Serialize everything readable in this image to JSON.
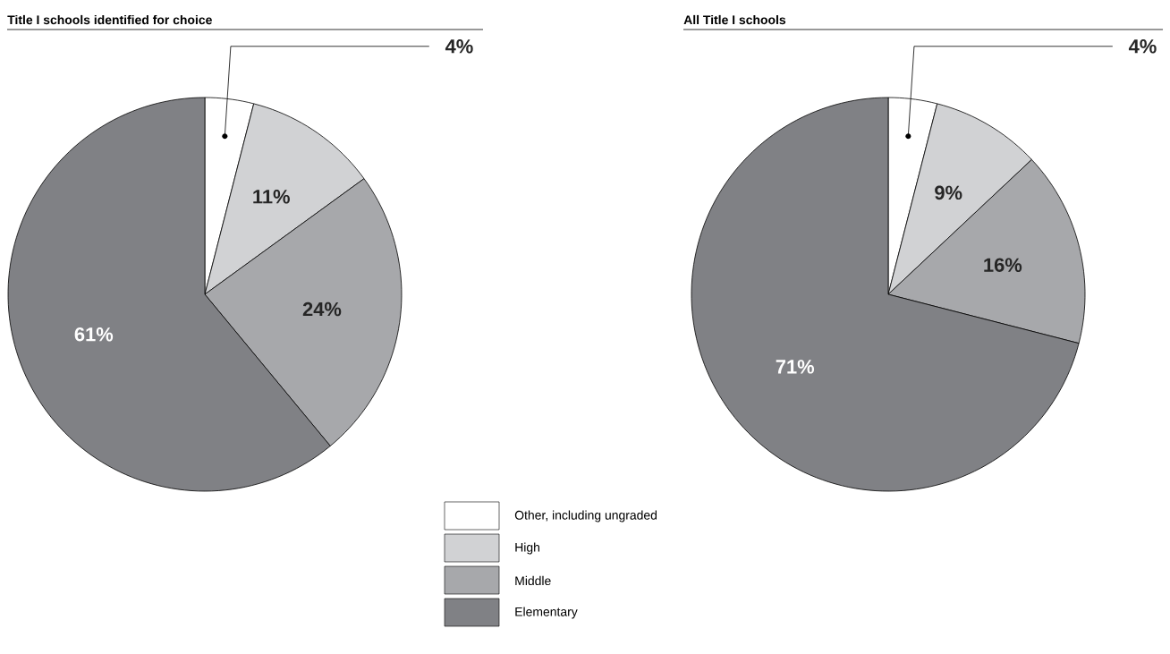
{
  "chart_data": [
    {
      "type": "pie",
      "title": "Title I schools identified for choice",
      "categories": [
        "Other, including ungraded",
        "High",
        "Middle",
        "Elementary"
      ],
      "values": [
        4,
        11,
        24,
        61
      ],
      "colors": [
        "#ffffff",
        "#d1d2d4",
        "#a7a8ab",
        "#808185"
      ],
      "value_labels": [
        "4%",
        "11%",
        "24%",
        "61%"
      ],
      "legend": "bottom right"
    },
    {
      "type": "pie",
      "title": "All Title I schools",
      "values": [
        4,
        9,
        16,
        71
      ],
      "colors": [
        "#ffffff",
        "#d1d2d4",
        "#a7a8ab",
        "#808185"
      ],
      "value_labels": [
        "4%",
        "9%",
        "16%",
        "71%"
      ]
    }
  ]
}
